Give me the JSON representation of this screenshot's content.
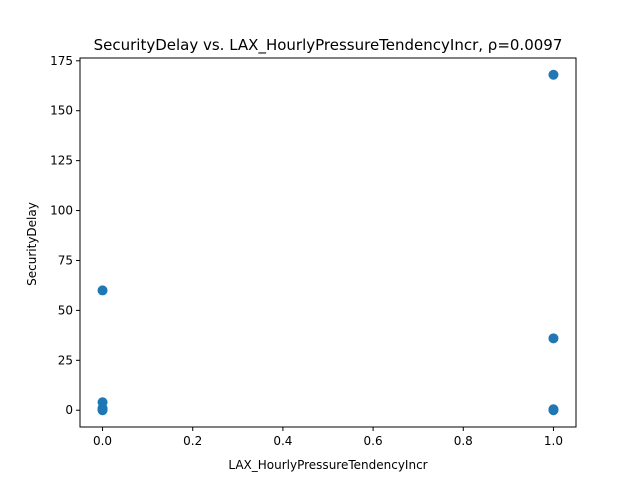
{
  "chart_data": {
    "type": "scatter",
    "title": "SecurityDelay vs. LAX_HourlyPressureTendencyIncr, ρ=0.0097",
    "xlabel": "LAX_HourlyPressureTendencyIncr",
    "ylabel": "SecurityDelay",
    "xlim": [
      -0.05,
      1.05
    ],
    "ylim": [
      -8.4,
      176.4
    ],
    "x_ticks": [
      0.0,
      0.2,
      0.4,
      0.6,
      0.8,
      1.0
    ],
    "x_tick_labels": [
      "0.0",
      "0.2",
      "0.4",
      "0.6",
      "0.8",
      "1.0"
    ],
    "y_ticks": [
      0,
      25,
      50,
      75,
      100,
      125,
      150,
      175
    ],
    "y_tick_labels": [
      "0",
      "25",
      "50",
      "75",
      "100",
      "125",
      "150",
      "175"
    ],
    "grid": false,
    "marker_color": "#1f77b4",
    "points": [
      {
        "x": 0,
        "y": 0
      },
      {
        "x": 0,
        "y": 0.5
      },
      {
        "x": 0,
        "y": 1
      },
      {
        "x": 0,
        "y": 4
      },
      {
        "x": 0,
        "y": 60
      },
      {
        "x": 1,
        "y": 0
      },
      {
        "x": 1,
        "y": 0.5
      },
      {
        "x": 1,
        "y": 36
      },
      {
        "x": 1,
        "y": 168
      }
    ]
  }
}
